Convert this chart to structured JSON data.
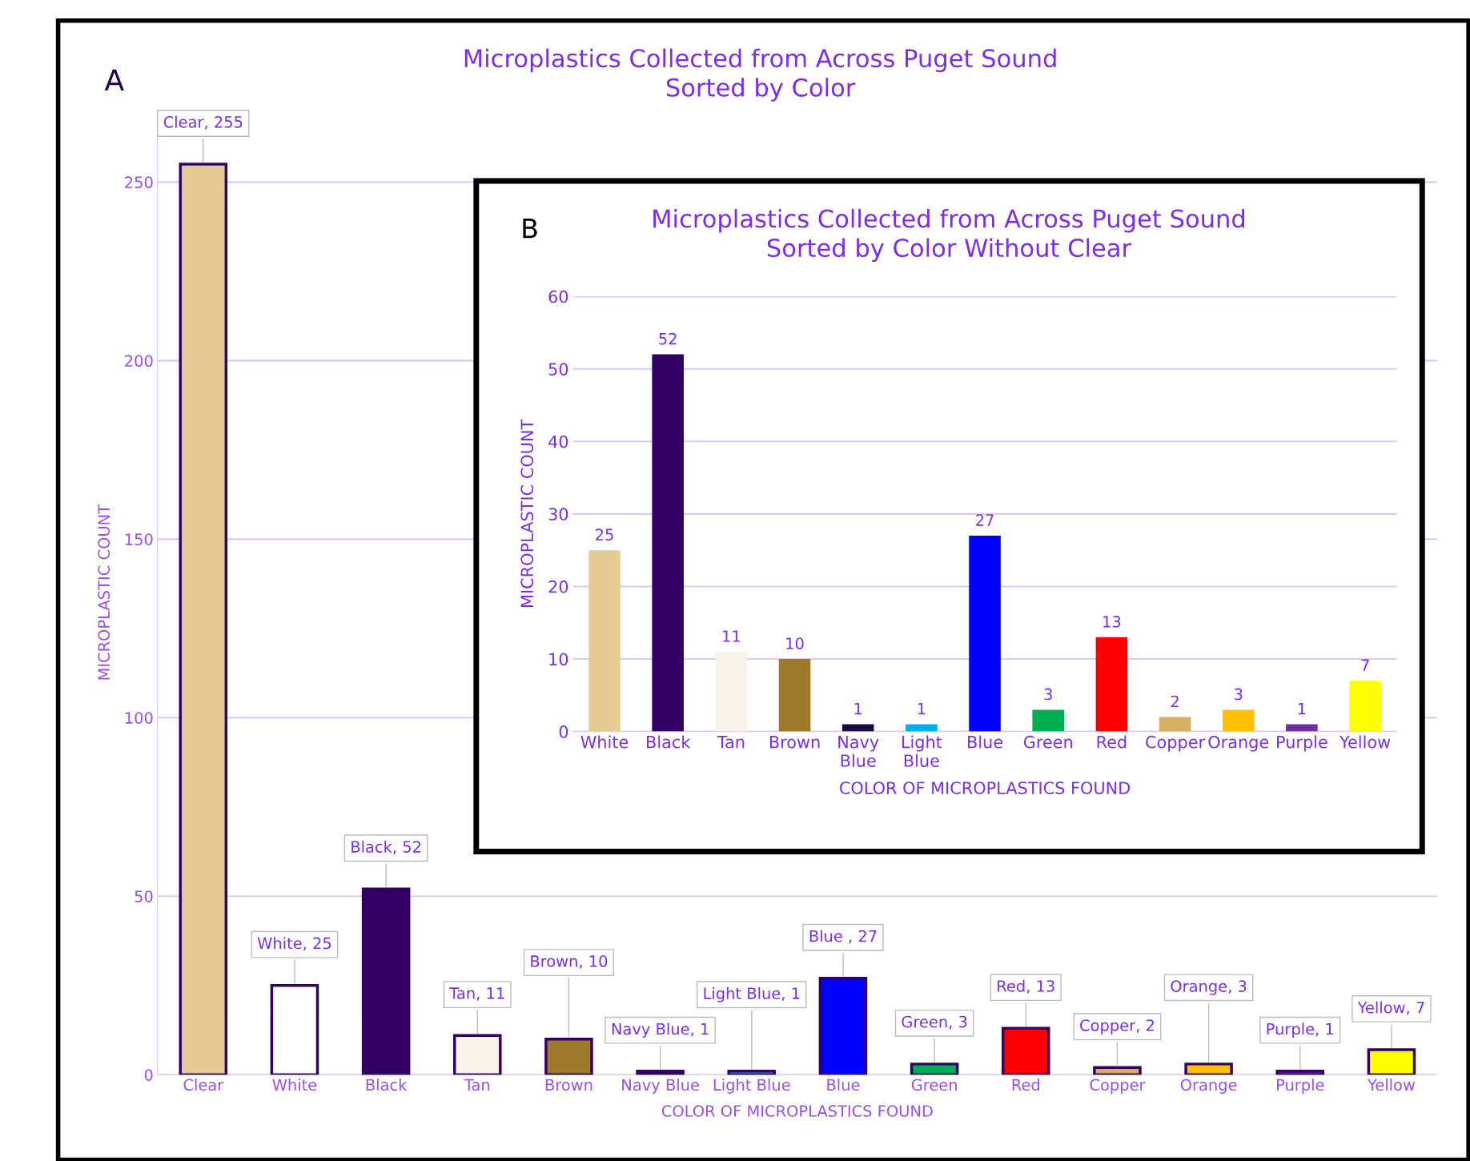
{
  "chart_data": [
    {
      "type": "bar",
      "title": "Microplastics Collected from Across Puget Sound\nSorted by Color",
      "xlabel": "COLOR OF MICROPLASTICS FOUND",
      "ylabel": "MICROPLASTIC COUNT",
      "annotations": [
        "A"
      ],
      "categories": [
        "Clear",
        "White",
        "Black",
        "Tan",
        "Brown",
        "Navy Blue",
        "Light Blue",
        "Blue",
        "Green",
        "Red",
        "Copper",
        "Orange",
        "Purple",
        "Yellow"
      ],
      "values": [
        255,
        25,
        52,
        11,
        10,
        1,
        1,
        27,
        3,
        13,
        2,
        3,
        1,
        7
      ],
      "colors": [
        "#e5cc93",
        "#ffffff",
        "#330066",
        "#f8f3e8",
        "#9e7a2a",
        "#1a0a40",
        "#00b0f0",
        "#0000ff",
        "#00b050",
        "#ff0000",
        "#d6b060",
        "#ffc000",
        "#7030a0",
        "#ffff00"
      ],
      "value_labels": [
        "Clear, 255",
        "White, 25",
        "Black, 52",
        "Tan, 11",
        "Brown, 10",
        "Navy Blue, 1",
        "Light Blue, 1",
        "Blue , 27",
        "Green, 3",
        "Red, 13",
        "Copper, 2",
        "Orange, 3",
        "Purple, 1",
        "Yellow, 7"
      ],
      "ylim": [
        0,
        270
      ],
      "yticks": [
        0,
        50,
        100,
        150,
        200,
        250
      ],
      "grid": "y",
      "legend": false
    },
    {
      "type": "bar",
      "title": "Microplastics Collected from Across Puget Sound\nSorted by Color Without Clear",
      "xlabel": "COLOR OF MICROPLASTICS FOUND",
      "ylabel": "MICROPLASTIC COUNT",
      "annotations": [
        "B"
      ],
      "categories": [
        "White",
        "Black",
        "Tan",
        "Brown",
        "Navy Blue",
        "Light Blue",
        "Blue",
        "Green",
        "Red",
        "Copper",
        "Orange",
        "Purple",
        "Yellow"
      ],
      "values": [
        25,
        52,
        11,
        10,
        1,
        1,
        27,
        3,
        13,
        2,
        3,
        1,
        7
      ],
      "colors": [
        "#e5cc93",
        "#330066",
        "#f8f3e8",
        "#9e7a2a",
        "#1a0a40",
        "#00b0f0",
        "#0000ff",
        "#00b050",
        "#ff0000",
        "#d6b060",
        "#ffc000",
        "#7030a0",
        "#ffff00"
      ],
      "data_labels": true,
      "ylim": [
        0,
        60
      ],
      "yticks": [
        0,
        10,
        20,
        30,
        40,
        50,
        60
      ],
      "grid": "y",
      "legend": false
    }
  ]
}
